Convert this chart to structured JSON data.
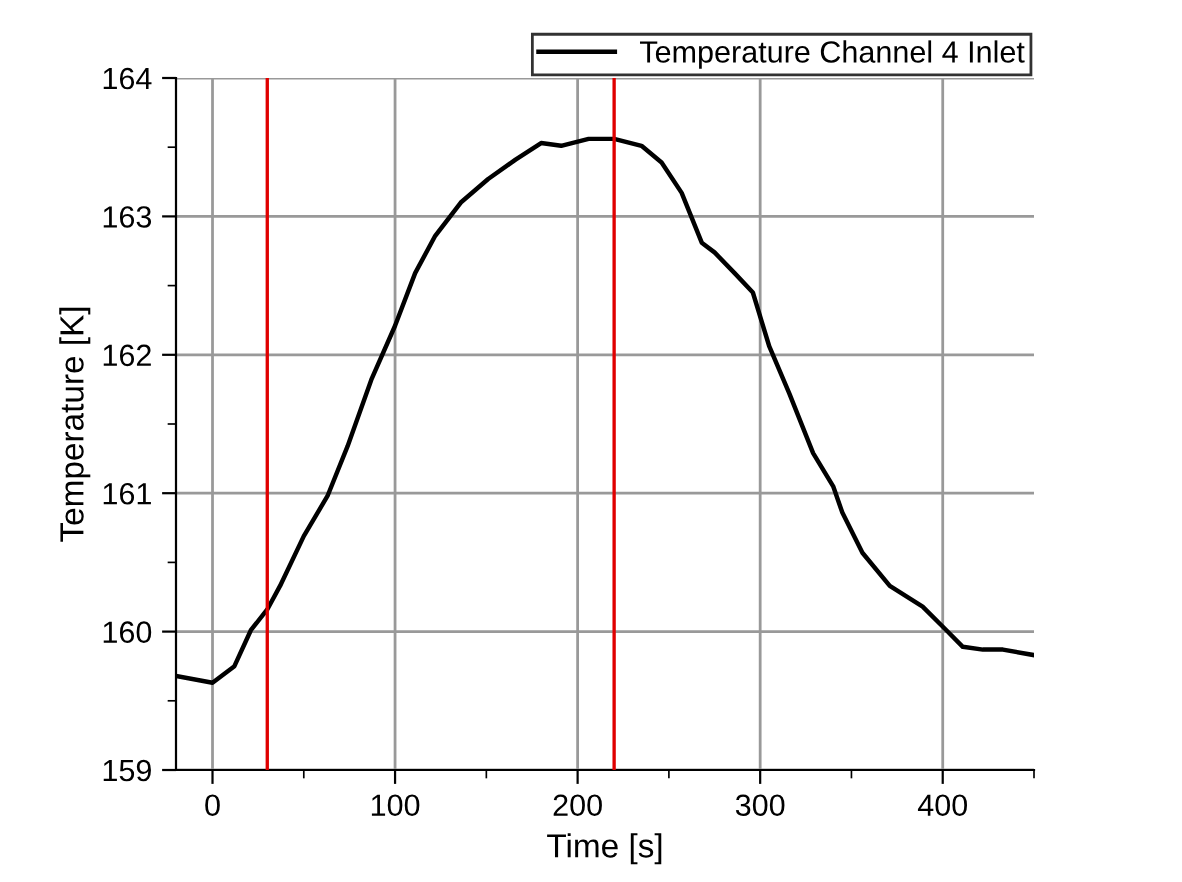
{
  "chart_data": {
    "type": "line",
    "xlabel": "Time [s]",
    "ylabel": "Temperature [K]",
    "series": [
      {
        "name": "Temperature Channel 4 Inlet",
        "color": "#000000",
        "x": [
          -20,
          0,
          12,
          21,
          30,
          37,
          50,
          63,
          74,
          87,
          100,
          111,
          122,
          136,
          151,
          166,
          180,
          191,
          206,
          220,
          235,
          246,
          257,
          268,
          275,
          286,
          296,
          305,
          316,
          329,
          340,
          345,
          356,
          371,
          389,
          402,
          411,
          422,
          433,
          450
        ],
        "values": [
          159.68,
          159.63,
          159.75,
          160.01,
          160.16,
          160.33,
          160.69,
          160.98,
          161.34,
          161.82,
          162.21,
          162.59,
          162.86,
          163.1,
          163.27,
          163.41,
          163.53,
          163.51,
          163.56,
          163.56,
          163.51,
          163.39,
          163.17,
          162.81,
          162.74,
          162.59,
          162.45,
          162.06,
          161.72,
          161.29,
          161.05,
          160.86,
          160.57,
          160.33,
          160.18,
          160.01,
          159.89,
          159.87,
          159.87,
          159.83
        ]
      }
    ],
    "xlim": [
      -20,
      450
    ],
    "xticks": [
      0,
      100,
      200,
      300,
      400
    ],
    "ylim": [
      159,
      164
    ],
    "yticks": [
      159,
      160,
      161,
      162,
      163,
      164
    ],
    "ref_lines": [
      {
        "axis": "x",
        "value": 30,
        "color": "#e00000"
      },
      {
        "axis": "x",
        "value": 220,
        "color": "#e00000"
      }
    ],
    "grid": true,
    "legend": "top right",
    "marker": "none",
    "line_style": "solid"
  }
}
